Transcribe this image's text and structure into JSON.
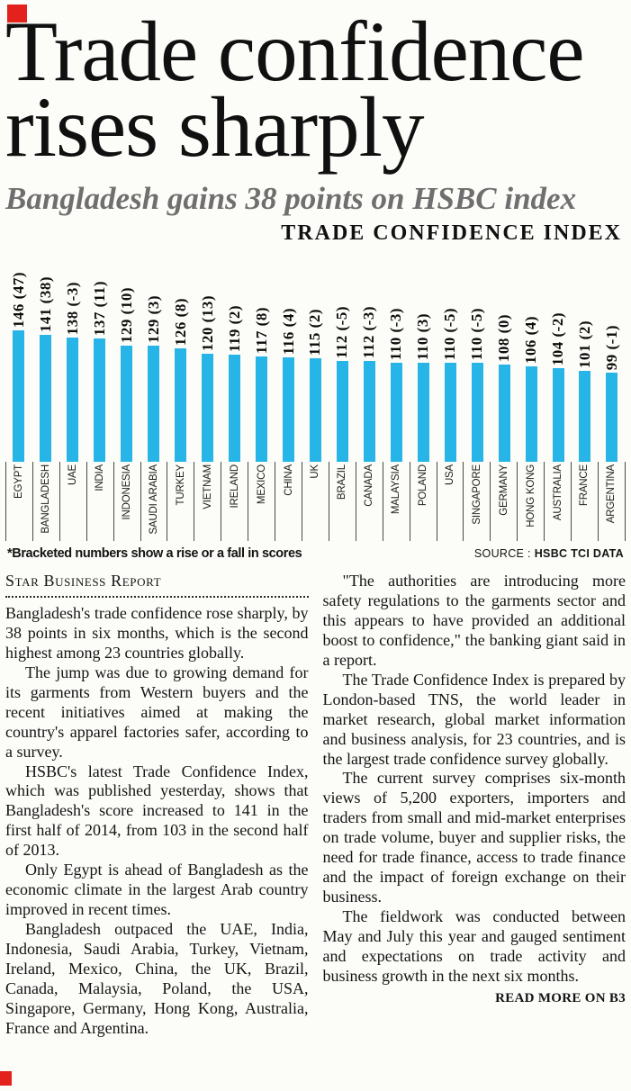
{
  "headline": {
    "line1": "Trade confidence",
    "line2": "rises sharply"
  },
  "subheadline": "Bangladesh gains 38 points on HSBC index",
  "chart": {
    "title": "TRADE CONFIDENCE INDEX",
    "footnote": "*Bracketed numbers show a rise or a fall in scores",
    "source_prefix": "SOURCE :",
    "source_value": "HSBC TCI DATA"
  },
  "chart_data": {
    "type": "bar",
    "title": "TRADE CONFIDENCE INDEX",
    "categories": [
      "EGYPT",
      "BANGLADESH",
      "UAE",
      "INDIA",
      "INDONESIA",
      "SAUDI ARABIA",
      "TURKEY",
      "VIETNAM",
      "IRELAND",
      "MEXICO",
      "CHINA",
      "UK",
      "BRAZIL",
      "CANADA",
      "MALAYSIA",
      "POLAND",
      "USA",
      "SINGAPORE",
      "GERMANY",
      "HONG KONG",
      "AUSTRALIA",
      "FRANCE",
      "ARGENTINA"
    ],
    "values": [
      146,
      141,
      138,
      137,
      129,
      129,
      126,
      120,
      119,
      117,
      116,
      115,
      112,
      112,
      110,
      110,
      110,
      110,
      108,
      106,
      104,
      101,
      99
    ],
    "changes": [
      47,
      38,
      -3,
      11,
      10,
      3,
      8,
      13,
      2,
      8,
      4,
      2,
      -5,
      -3,
      -3,
      3,
      -5,
      -5,
      0,
      4,
      -2,
      2,
      -1
    ],
    "bar_labels": [
      "146 (47)",
      "141 (38)",
      "138 (-3)",
      "137 (11)",
      "129 (10)",
      "129 (3)",
      "126 (8)",
      "120 (13)",
      "119 (2)",
      "117 (8)",
      "116 (4)",
      "115 (2)",
      "112 (-5)",
      "112 (-3)",
      "110 (-3)",
      "110 (3)",
      "110 (-5)",
      "110 (-5)",
      "108 (0)",
      "106 (4)",
      "104 (-2)",
      "101 (2)",
      "99 (-1)"
    ],
    "bar_color": "#27b4e7",
    "ylim": [
      0,
      150
    ],
    "grid": false,
    "legend": "none",
    "footnote": "*Bracketed numbers show a rise or a fall in scores",
    "source": "HSBC TCI DATA"
  },
  "article": {
    "byline": "Star Business Report",
    "columns": {
      "left": [
        "Bangladesh's trade confidence rose sharply, by 38 points in six months, which is the second highest among 23 countries globally.",
        "The jump was due to growing demand for its garments from Western buyers and the recent initiatives aimed at making the country's apparel factories safer, according to a survey.",
        "HSBC's latest Trade Confidence Index, which was published yesterday, shows that Bangladesh's score increased to 141 in the first half of 2014, from 103 in the second half of 2013.",
        "Only Egypt is ahead of Bangladesh as the economic climate in the largest Arab country improved in recent times.",
        "Bangladesh outpaced the UAE, India, Indonesia, Saudi Arabia, Turkey, Vietnam, Ireland, Mexico, China, the UK, Brazil, Canada, Malaysia, Poland, the USA, Singapore, Germany, Hong Kong, Australia, France and Argentina."
      ],
      "right": [
        "\"The authorities are introducing more safety regulations to the garments sector and this appears to have provided an additional boost to confidence,\" the banking giant said in a report.",
        "The Trade Confidence Index is prepared by London-based TNS, the world leader in market research, global market information and business analysis, for 23 countries, and is the largest trade confidence survey globally.",
        "The current survey comprises six-month views of 5,200 exporters, importers and traders from small and mid-market enterprises on trade volume, buyer and supplier risks, the need for trade finance, access to trade finance and the impact of foreign exchange on their business.",
        "The fieldwork was conducted between May and July this year and gauged sentiment and expectations on trade activity and business growth in the next six months."
      ]
    },
    "read_more": "READ MORE ON B3"
  }
}
